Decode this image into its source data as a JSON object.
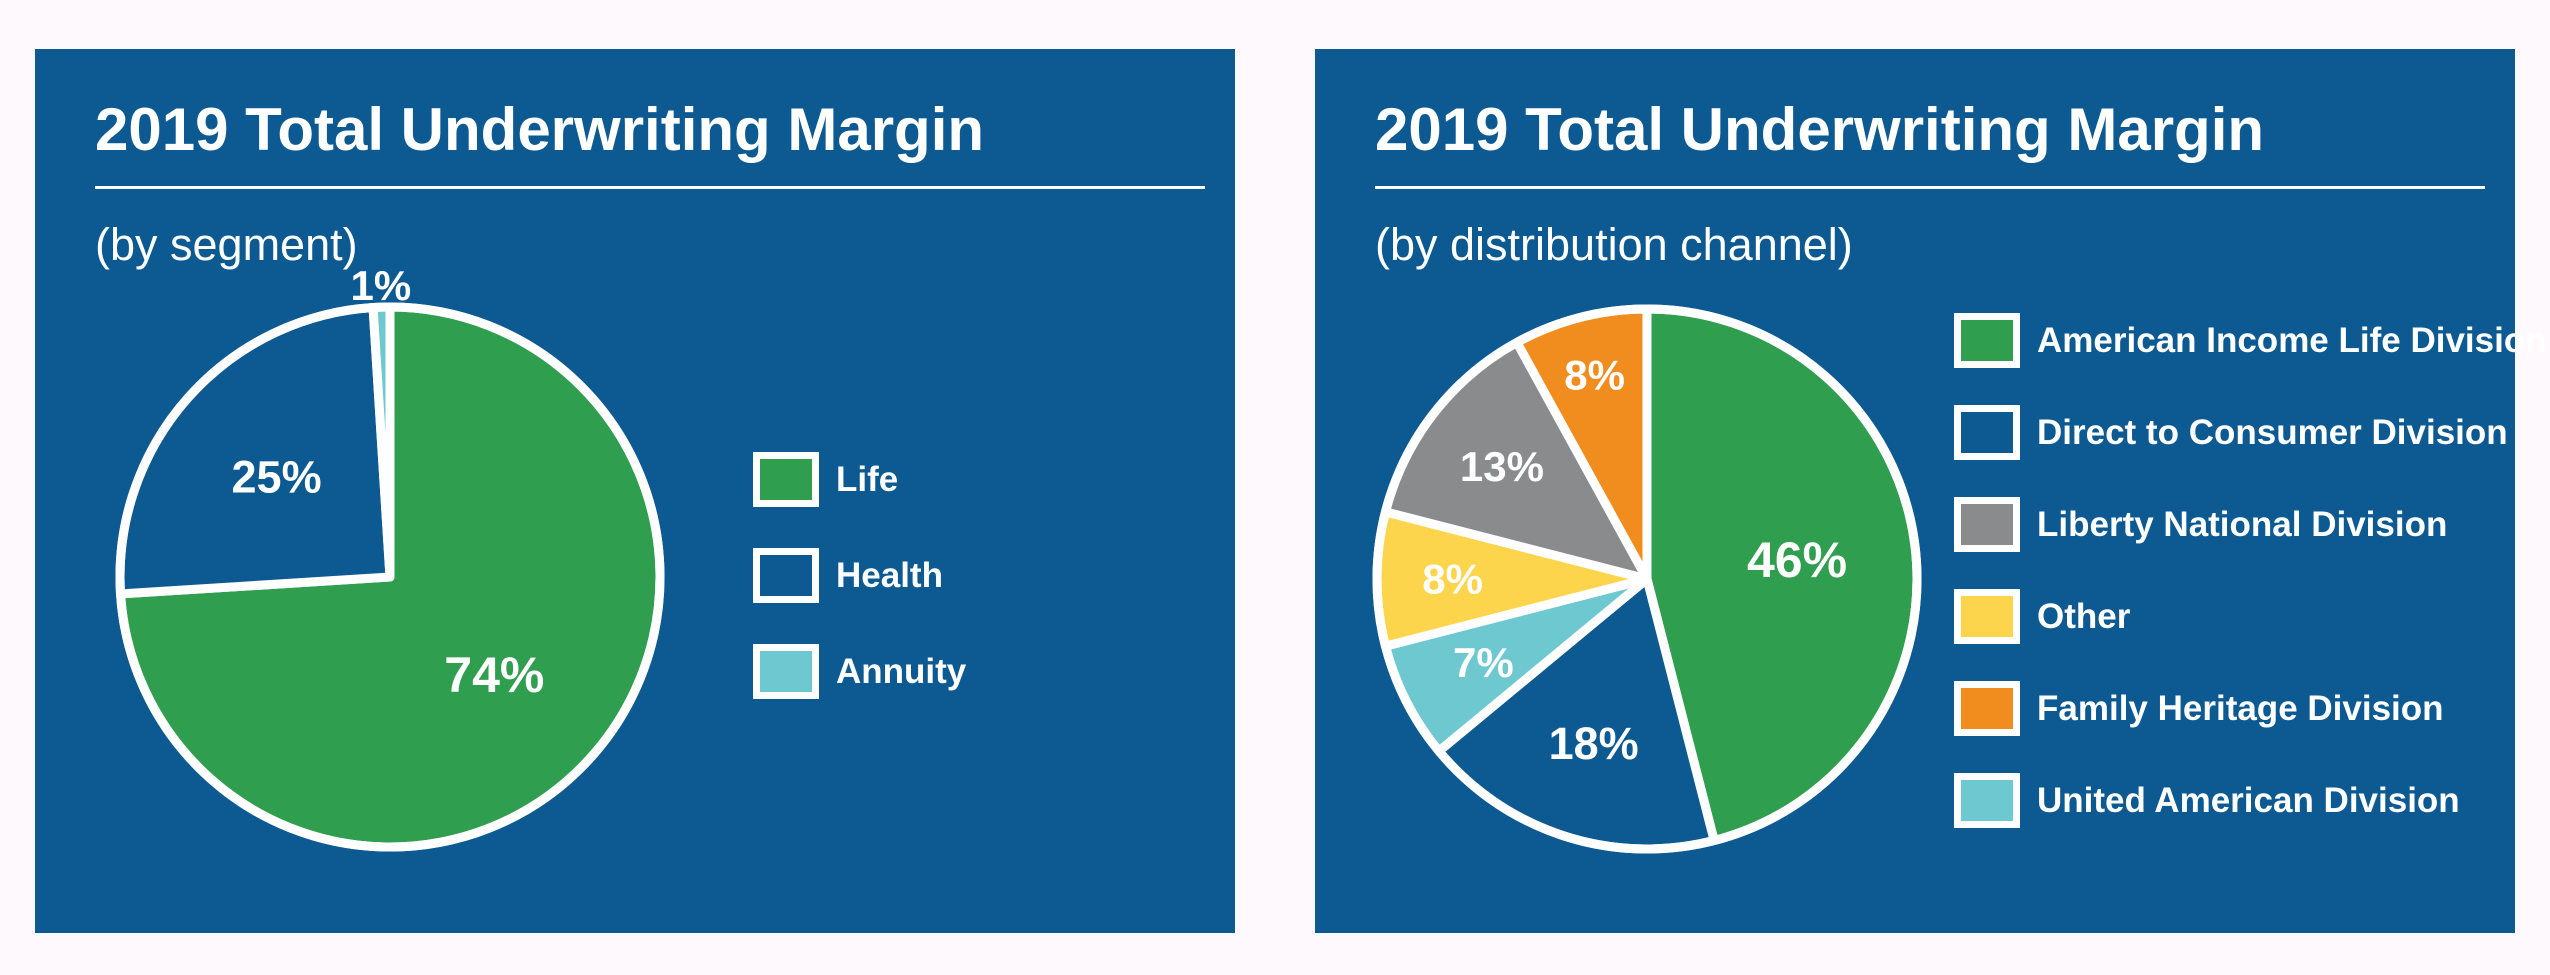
{
  "colors": {
    "page_background": "#fdf9fc",
    "panel_background": "#0d5a93",
    "divider_white": "#ffffff",
    "text_white": "#ffffff",
    "green": "#2f9e4e",
    "dark_blue": "#0d5a93",
    "teal": "#6ec8d0",
    "yellow": "#fdd54d",
    "gray": "#8a8b8d",
    "orange": "#f18d1f"
  },
  "chart_data": [
    {
      "type": "pie",
      "title": "2019 Total Underwriting Margin",
      "subtitle": "(by segment)",
      "start_angle_deg": 0,
      "direction": "clockwise",
      "legend_position": "right",
      "slices": [
        {
          "label": "Life",
          "value": 74,
          "display": "74%",
          "color": "#2f9e4e",
          "label_r": 0.53
        },
        {
          "label": "Health",
          "value": 25,
          "display": "25%",
          "color": "#0d5a93",
          "label_r": 0.56
        },
        {
          "label": "Annuity",
          "value": 1,
          "display": "1%",
          "color": "#6ec8d0",
          "label_r": 1.08
        }
      ],
      "legend": [
        {
          "label": "Life",
          "color": "#2f9e4e"
        },
        {
          "label": "Health",
          "color": "#0d5a93"
        },
        {
          "label": "Annuity",
          "color": "#6ec8d0"
        }
      ]
    },
    {
      "type": "pie",
      "title": "2019 Total Underwriting Margin",
      "subtitle": "(by distribution channel)",
      "start_angle_deg": 0,
      "direction": "clockwise",
      "legend_position": "right",
      "slices": [
        {
          "label": "American Income Life Division",
          "value": 46,
          "display": "46%",
          "color": "#2f9e4e",
          "label_r": 0.56
        },
        {
          "label": "Direct to Consumer Division",
          "value": 18,
          "display": "18%",
          "color": "#0d5a93",
          "label_r": 0.64
        },
        {
          "label": "United American Division",
          "value": 7,
          "display": "7%",
          "color": "#6ec8d0",
          "label_r": 0.68
        },
        {
          "label": "Other",
          "value": 8,
          "display": "8%",
          "color": "#fdd54d",
          "label_r": 0.72
        },
        {
          "label": "Liberty National Division",
          "value": 13,
          "display": "13%",
          "color": "#8a8b8d",
          "label_r": 0.68
        },
        {
          "label": "Family Heritage Division",
          "value": 8,
          "display": "8%",
          "color": "#f18d1f",
          "label_r": 0.78
        }
      ],
      "legend": [
        {
          "label": "American Income Life Division",
          "color": "#2f9e4e"
        },
        {
          "label": "Direct to Consumer Division",
          "color": "#0d5a93"
        },
        {
          "label": "Liberty National Division",
          "color": "#8a8b8d"
        },
        {
          "label": "Other",
          "color": "#fdd54d"
        },
        {
          "label": "Family Heritage Division",
          "color": "#f18d1f"
        },
        {
          "label": "United American Division",
          "color": "#6ec8d0"
        }
      ]
    }
  ]
}
